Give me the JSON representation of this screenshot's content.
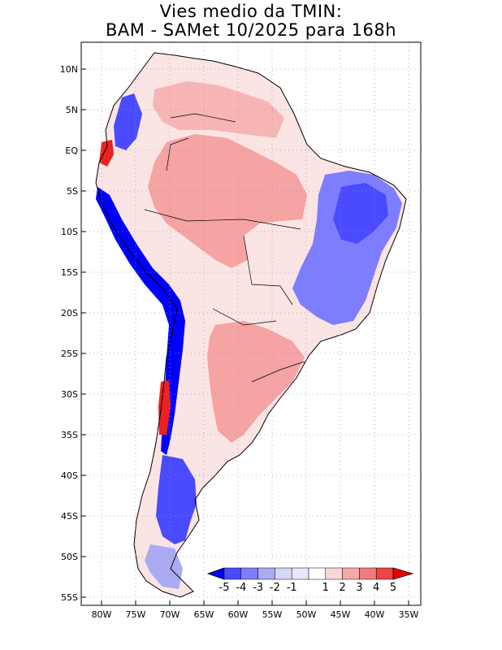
{
  "title": {
    "line1": "Vies medio da TMIN:",
    "line2": "BAM - SAMet 10/2025  para 168h"
  },
  "map": {
    "lat_ticks": [
      "10N",
      "5N",
      "EQ",
      "5S",
      "10S",
      "15S",
      "20S",
      "25S",
      "30S",
      "35S",
      "40S",
      "45S",
      "50S",
      "55S"
    ],
    "lon_ticks": [
      "80W",
      "75W",
      "70W",
      "65W",
      "60W",
      "55W",
      "50W",
      "45W",
      "40W",
      "35W"
    ],
    "lon_range": [
      -83,
      -34
    ],
    "lat_range": [
      -56,
      13
    ],
    "grid": "dotted"
  },
  "colorbar": {
    "labels": [
      "-5",
      "-4",
      "-3",
      "-2",
      "-1",
      "1",
      "2",
      "3",
      "4",
      "5"
    ],
    "colors": [
      "#0000ff",
      "#4a4aff",
      "#7d7dff",
      "#aaaaf5",
      "#d7d7fa",
      "#ffffff",
      "#fad7d7",
      "#f5aaaa",
      "#f07d7d",
      "#ee4444",
      "#ee0000"
    ]
  },
  "colors": {
    "strong_cold": "#1010ee",
    "cold": "#6a6aff",
    "light_cold": "#c8c8f5",
    "light_warm": "#fadada",
    "warm": "#f5a3a3",
    "strong_warm": "#ee2020",
    "coast": "#000000"
  }
}
